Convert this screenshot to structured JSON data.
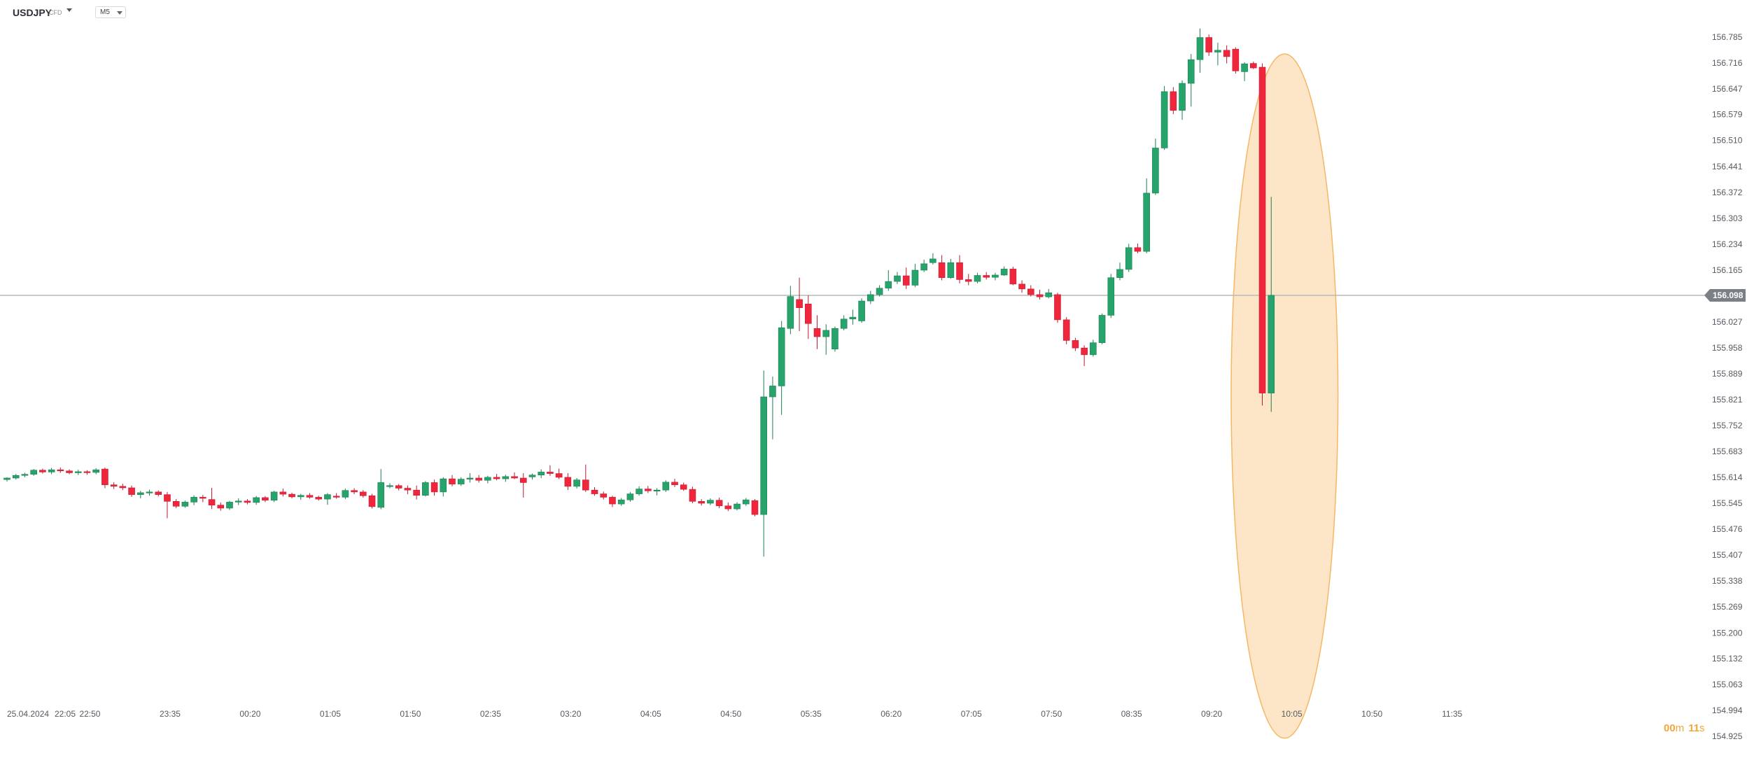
{
  "toolbar": {
    "symbol": "USDJPY",
    "instrument_type": "CFD",
    "timeframe": "M5",
    "symbol_dropdown_icon": "chevron-down-icon",
    "timeframe_dropdown_icon": "chevron-down-icon"
  },
  "colors": {
    "up": "#26a46b",
    "down": "#f0263c",
    "highlight_fill": "#fde6c8",
    "highlight_stroke": "#f6b765",
    "price_line": "#b8b8b8",
    "price_tag": "#7b8087",
    "countdown": "#f2a73a",
    "axis_text": "#555a60"
  },
  "countdown": {
    "minutes": "00",
    "m_label": "m",
    "seconds": "11",
    "s_label": "s"
  },
  "chart_data": {
    "type": "candlestick",
    "interval": "5 minutes",
    "start_time": "22:05",
    "current_price": 156.098,
    "y_ticks": [
      156.785,
      156.716,
      156.647,
      156.579,
      156.51,
      156.441,
      156.372,
      156.303,
      156.234,
      156.165,
      156.027,
      155.958,
      155.889,
      155.821,
      155.752,
      155.683,
      155.614,
      155.545,
      155.476,
      155.407,
      155.338,
      155.269,
      155.2,
      155.132,
      155.063,
      154.994,
      154.925
    ],
    "x_ticks": [
      {
        "label": "25.04.2024",
        "bar": -1
      },
      {
        "label": "22:05",
        "bar": 0
      },
      {
        "label": "22:50",
        "bar": 9
      },
      {
        "label": "23:35",
        "bar": 18
      },
      {
        "label": "00:20",
        "bar": 27
      },
      {
        "label": "01:05",
        "bar": 36
      },
      {
        "label": "01:50",
        "bar": 45
      },
      {
        "label": "02:35",
        "bar": 54
      },
      {
        "label": "03:20",
        "bar": 63
      },
      {
        "label": "04:05",
        "bar": 72
      },
      {
        "label": "04:50",
        "bar": 81
      },
      {
        "label": "05:35",
        "bar": 90
      },
      {
        "label": "06:20",
        "bar": 99
      },
      {
        "label": "07:05",
        "bar": 108
      },
      {
        "label": "07:50",
        "bar": 117
      },
      {
        "label": "08:35",
        "bar": 126
      },
      {
        "label": "09:20",
        "bar": 135
      },
      {
        "label": "10:05",
        "bar": 144
      },
      {
        "label": "10:50",
        "bar": 153
      },
      {
        "label": "11:35",
        "bar": 162
      }
    ],
    "highlight": {
      "shape": "ellipse",
      "bar_from": 137.5,
      "bar_to": 149.5,
      "price_top": 156.74,
      "price_bottom": 154.92
    },
    "candles": [
      [
        155.608,
        155.614,
        155.603,
        155.612
      ],
      [
        155.612,
        155.623,
        155.608,
        155.619
      ],
      [
        155.619,
        155.626,
        155.614,
        155.622
      ],
      [
        155.622,
        155.636,
        155.618,
        155.633
      ],
      [
        155.633,
        155.637,
        155.624,
        155.628
      ],
      [
        155.628,
        155.639,
        155.622,
        155.634
      ],
      [
        155.634,
        155.64,
        155.626,
        155.631
      ],
      [
        155.631,
        155.635,
        155.622,
        155.626
      ],
      [
        155.626,
        155.634,
        155.62,
        155.629
      ],
      [
        155.629,
        155.633,
        155.621,
        155.627
      ],
      [
        155.627,
        155.638,
        155.622,
        155.634
      ],
      [
        155.636,
        155.64,
        155.585,
        155.594
      ],
      [
        155.594,
        155.601,
        155.583,
        155.59
      ],
      [
        155.59,
        155.597,
        155.58,
        155.586
      ],
      [
        155.586,
        155.592,
        155.562,
        155.568
      ],
      [
        155.568,
        155.578,
        155.558,
        155.573
      ],
      [
        155.573,
        155.581,
        155.565,
        155.575
      ],
      [
        155.575,
        155.579,
        155.563,
        155.568
      ],
      [
        155.568,
        155.575,
        155.505,
        155.55
      ],
      [
        155.55,
        155.556,
        155.532,
        155.537
      ],
      [
        155.537,
        155.552,
        155.533,
        155.548
      ],
      [
        155.548,
        155.566,
        155.54,
        155.561
      ],
      [
        155.561,
        155.567,
        155.548,
        155.558
      ],
      [
        155.555,
        155.586,
        155.53,
        155.54
      ],
      [
        155.54,
        155.547,
        155.525,
        155.532
      ],
      [
        155.532,
        155.551,
        155.527,
        155.548
      ],
      [
        155.548,
        155.558,
        155.54,
        155.551
      ],
      [
        155.551,
        155.556,
        155.542,
        155.547
      ],
      [
        155.547,
        155.564,
        155.541,
        155.56
      ],
      [
        155.56,
        155.564,
        155.548,
        155.553
      ],
      [
        155.553,
        155.578,
        155.548,
        155.575
      ],
      [
        155.575,
        155.584,
        155.563,
        155.569
      ],
      [
        155.569,
        155.573,
        155.558,
        155.562
      ],
      [
        155.562,
        155.57,
        155.554,
        155.566
      ],
      [
        155.566,
        155.572,
        155.557,
        155.561
      ],
      [
        155.561,
        155.565,
        155.552,
        155.556
      ],
      [
        155.556,
        155.572,
        155.541,
        155.568
      ],
      [
        155.564,
        155.572,
        155.557,
        155.561
      ],
      [
        155.561,
        155.584,
        155.556,
        155.579
      ],
      [
        155.579,
        155.585,
        155.569,
        155.575
      ],
      [
        155.575,
        155.58,
        155.56,
        155.565
      ],
      [
        155.565,
        155.57,
        155.531,
        155.536
      ],
      [
        155.534,
        155.636,
        155.529,
        155.6
      ],
      [
        155.59,
        155.598,
        155.585,
        155.592
      ],
      [
        155.592,
        155.596,
        155.579,
        155.585
      ],
      [
        155.585,
        155.592,
        155.569,
        155.58
      ],
      [
        155.58,
        155.592,
        155.555,
        155.566
      ],
      [
        155.566,
        155.604,
        155.563,
        155.6
      ],
      [
        155.6,
        155.608,
        155.565,
        155.575
      ],
      [
        155.575,
        155.614,
        155.563,
        155.61
      ],
      [
        155.61,
        155.62,
        155.59,
        155.596
      ],
      [
        155.596,
        155.614,
        155.591,
        155.609
      ],
      [
        155.609,
        155.625,
        155.6,
        155.612
      ],
      [
        155.612,
        155.62,
        155.6,
        155.606
      ],
      [
        155.606,
        155.618,
        155.598,
        155.614
      ],
      [
        155.614,
        155.623,
        155.606,
        155.61
      ],
      [
        155.61,
        155.621,
        155.602,
        155.616
      ],
      [
        155.616,
        155.627,
        155.609,
        155.612
      ],
      [
        155.612,
        155.625,
        155.56,
        155.6
      ],
      [
        155.615,
        155.624,
        155.608,
        155.62
      ],
      [
        155.62,
        155.635,
        155.612,
        155.628
      ],
      [
        155.628,
        155.646,
        155.618,
        155.624
      ],
      [
        155.624,
        155.637,
        155.609,
        155.614
      ],
      [
        155.614,
        155.625,
        155.58,
        155.59
      ],
      [
        155.59,
        155.612,
        155.584,
        155.607
      ],
      [
        155.607,
        155.648,
        155.575,
        155.58
      ],
      [
        155.58,
        155.588,
        155.565,
        155.57
      ],
      [
        155.57,
        155.576,
        155.555,
        155.561
      ],
      [
        155.561,
        155.565,
        155.535,
        155.543
      ],
      [
        155.543,
        155.559,
        155.538,
        155.554
      ],
      [
        155.554,
        155.575,
        155.549,
        155.57
      ],
      [
        155.57,
        155.59,
        155.565,
        155.583
      ],
      [
        155.583,
        155.591,
        155.572,
        155.578
      ],
      [
        155.578,
        155.585,
        155.566,
        155.58
      ],
      [
        155.58,
        155.606,
        155.575,
        155.601
      ],
      [
        155.601,
        155.61,
        155.588,
        155.594
      ],
      [
        155.594,
        155.6,
        155.578,
        155.582
      ],
      [
        155.582,
        155.589,
        155.545,
        155.55
      ],
      [
        155.55,
        155.556,
        155.539,
        155.545
      ],
      [
        155.545,
        155.558,
        155.54,
        155.553
      ],
      [
        155.553,
        155.56,
        155.532,
        155.538
      ],
      [
        155.538,
        155.547,
        155.524,
        155.53
      ],
      [
        155.53,
        155.548,
        155.526,
        155.543
      ],
      [
        155.543,
        155.559,
        155.538,
        155.554
      ],
      [
        155.552,
        155.556,
        155.51,
        155.515
      ],
      [
        155.515,
        155.898,
        155.403,
        155.828
      ],
      [
        155.828,
        155.882,
        155.715,
        155.857
      ],
      [
        155.857,
        156.03,
        155.78,
        156.012
      ],
      [
        156.01,
        156.123,
        155.995,
        156.095
      ],
      [
        156.087,
        156.145,
        156.003,
        156.065
      ],
      [
        156.075,
        156.098,
        155.982,
        156.023
      ],
      [
        156.01,
        156.045,
        155.955,
        155.988
      ],
      [
        155.988,
        156.021,
        155.94,
        156.005
      ],
      [
        155.955,
        156.015,
        155.948,
        156.01
      ],
      [
        156.01,
        156.045,
        156.005,
        156.035
      ],
      [
        156.035,
        156.06,
        156.02,
        156.04
      ],
      [
        156.03,
        156.09,
        156.025,
        156.083
      ],
      [
        156.083,
        156.11,
        156.075,
        156.1
      ],
      [
        156.1,
        156.125,
        156.095,
        156.117
      ],
      [
        156.117,
        156.165,
        156.11,
        156.135
      ],
      [
        156.135,
        156.16,
        156.128,
        156.15
      ],
      [
        156.15,
        156.172,
        156.115,
        156.125
      ],
      [
        156.125,
        156.182,
        156.12,
        156.165
      ],
      [
        156.165,
        156.193,
        156.16,
        156.182
      ],
      [
        156.185,
        156.21,
        156.18,
        156.195
      ],
      [
        156.185,
        156.205,
        156.138,
        156.145
      ],
      [
        156.145,
        156.195,
        156.142,
        156.185
      ],
      [
        156.185,
        156.205,
        156.13,
        156.14
      ],
      [
        156.14,
        156.155,
        156.125,
        156.135
      ],
      [
        156.135,
        156.158,
        156.13,
        156.151
      ],
      [
        156.151,
        156.16,
        156.14,
        156.146
      ],
      [
        156.146,
        156.158,
        156.138,
        156.152
      ],
      [
        156.152,
        156.175,
        156.15,
        156.168
      ],
      [
        156.168,
        156.174,
        156.125,
        156.128
      ],
      [
        156.128,
        156.138,
        156.105,
        156.115
      ],
      [
        156.115,
        156.125,
        156.095,
        156.1
      ],
      [
        156.1,
        156.113,
        156.087,
        156.094
      ],
      [
        156.094,
        156.115,
        156.09,
        156.105
      ],
      [
        156.1,
        156.105,
        156.025,
        156.033
      ],
      [
        156.033,
        156.04,
        155.968,
        155.978
      ],
      [
        155.978,
        155.985,
        155.95,
        155.958
      ],
      [
        155.958,
        155.965,
        155.91,
        155.94
      ],
      [
        155.94,
        155.98,
        155.935,
        155.972
      ],
      [
        155.972,
        156.05,
        155.968,
        156.045
      ],
      [
        156.045,
        156.155,
        156.038,
        156.145
      ],
      [
        156.145,
        156.185,
        156.138,
        156.167
      ],
      [
        156.167,
        156.235,
        156.16,
        156.225
      ],
      [
        156.225,
        156.236,
        156.21,
        156.215
      ],
      [
        156.215,
        156.409,
        156.21,
        156.37
      ],
      [
        156.37,
        156.515,
        156.365,
        156.49
      ],
      [
        156.49,
        156.655,
        156.485,
        156.64
      ],
      [
        156.64,
        156.652,
        156.58,
        156.59
      ],
      [
        156.59,
        156.67,
        156.565,
        156.662
      ],
      [
        156.662,
        156.74,
        156.6,
        156.725
      ],
      [
        156.725,
        156.808,
        156.69,
        156.784
      ],
      [
        156.784,
        156.792,
        156.735,
        156.745
      ],
      [
        156.745,
        156.77,
        156.71,
        156.75
      ],
      [
        156.75,
        156.763,
        156.715,
        156.733
      ],
      [
        156.753,
        156.758,
        156.688,
        156.695
      ],
      [
        156.693,
        156.718,
        156.668,
        156.714
      ],
      [
        156.715,
        156.72,
        156.7,
        156.703
      ],
      [
        156.705,
        156.715,
        155.805,
        155.838
      ],
      [
        155.838,
        156.36,
        155.788,
        156.098
      ]
    ]
  }
}
